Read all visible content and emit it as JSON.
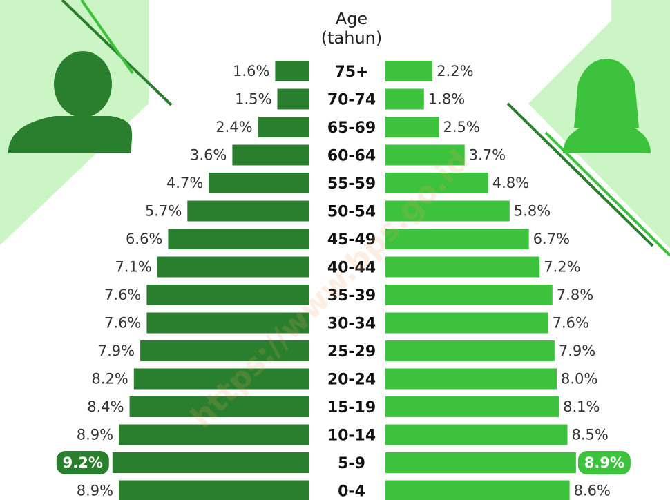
{
  "chart_data": {
    "type": "pyramid",
    "ylabel": [
      "Age",
      "(tahun)"
    ],
    "watermark": "https://www.bps.go.id",
    "categories": [
      "75+",
      "70-74",
      "65-69",
      "60-64",
      "55-59",
      "50-54",
      "45-49",
      "40-44",
      "35-39",
      "30-34",
      "25-29",
      "20-24",
      "15-19",
      "10-14",
      "5-9",
      "0-4"
    ],
    "series": [
      {
        "side": "left",
        "color": "#2a7f2e",
        "values": [
          1.6,
          1.5,
          2.4,
          3.6,
          4.7,
          5.7,
          6.6,
          7.1,
          7.6,
          7.6,
          7.9,
          8.2,
          8.4,
          8.9,
          9.2,
          8.9
        ],
        "value_labels": [
          "1.6%",
          "1.5%",
          "2.4%",
          "3.6%",
          "4.7%",
          "5.7%",
          "6.6%",
          "7.1%",
          "7.6%",
          "7.6%",
          "7.9%",
          "8.2%",
          "8.4%",
          "8.9%",
          "9.2%",
          "8.9%"
        ]
      },
      {
        "side": "right",
        "color": "#3cc23c",
        "values": [
          2.2,
          1.8,
          2.5,
          3.7,
          4.8,
          5.8,
          6.7,
          7.2,
          7.8,
          7.6,
          7.9,
          8.0,
          8.1,
          8.5,
          8.9,
          8.6
        ],
        "value_labels": [
          "2.2%",
          "1.8%",
          "2.5%",
          "3.7%",
          "4.8%",
          "5.8%",
          "6.7%",
          "7.2%",
          "7.8%",
          "7.6%",
          "7.9%",
          "8.0%",
          "8.1%",
          "8.5%",
          "8.9%",
          "8.6%"
        ]
      }
    ],
    "xlim": [
      0,
      10
    ],
    "highlight_index": 14
  }
}
